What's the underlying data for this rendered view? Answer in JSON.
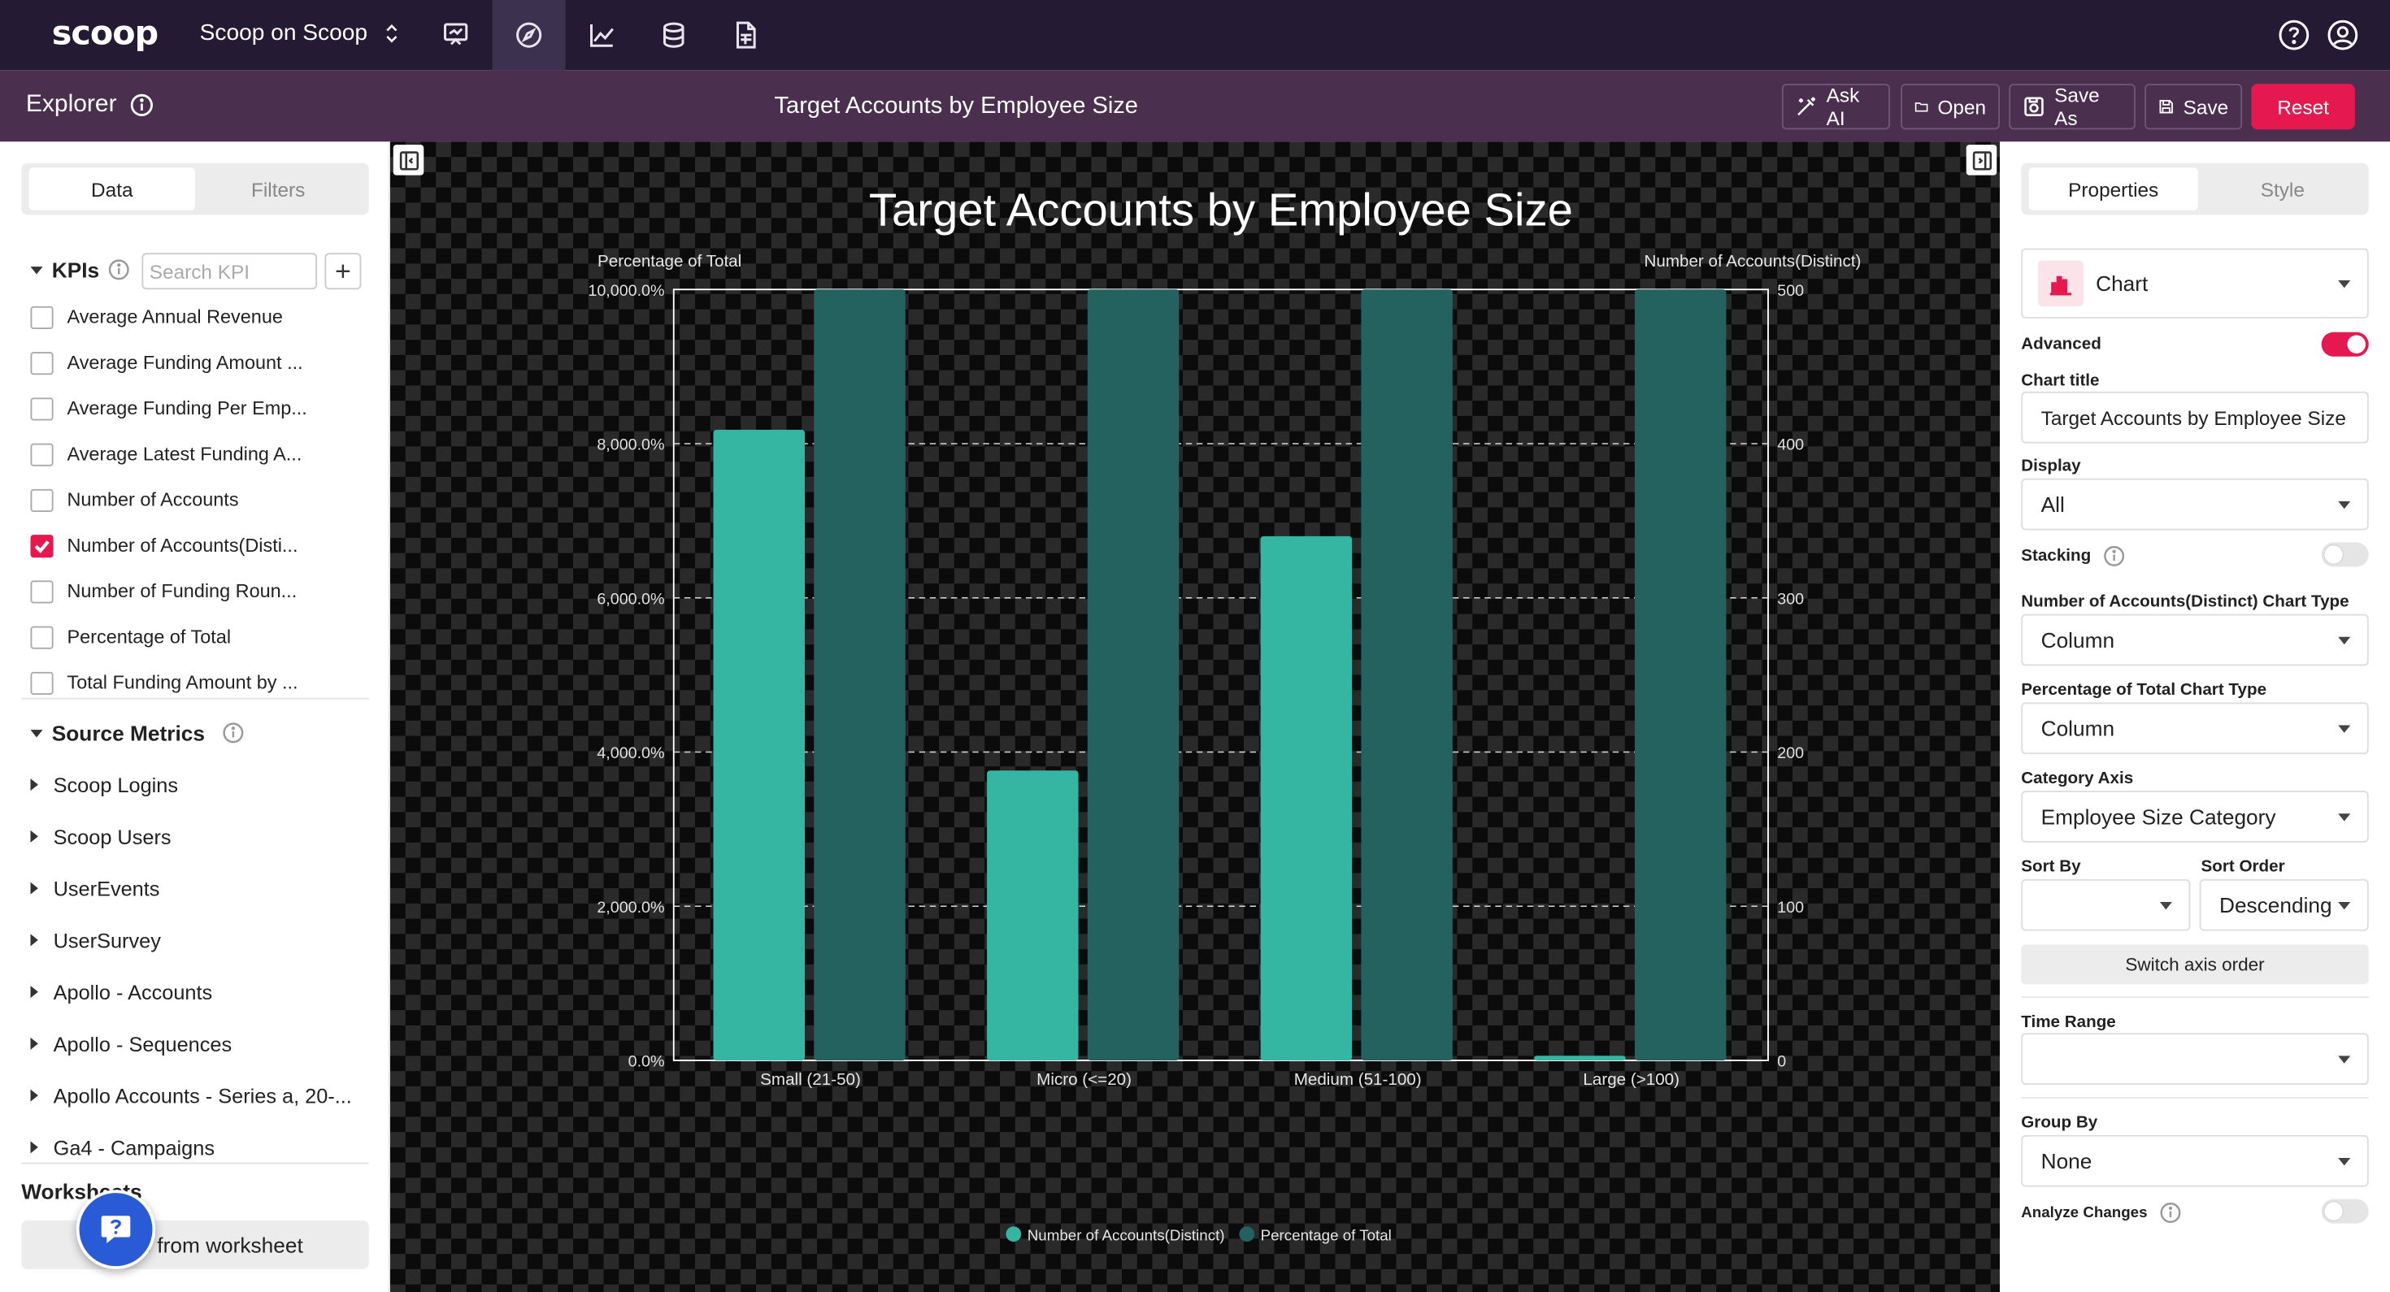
{
  "topbar": {
    "logo_text": "scoop",
    "workspace": "Scoop on Scoop",
    "nav_icons": [
      "presentation-icon",
      "explorer-compass-icon",
      "chart-line-icon",
      "database-icon",
      "report-icon"
    ],
    "help_icon": "help-icon",
    "account_icon": "account-icon"
  },
  "subbar": {
    "section": "Explorer",
    "title": "Target Accounts by Employee Size",
    "buttons": {
      "ask_ai": "Ask AI",
      "open": "Open",
      "save_as": "Save As",
      "save": "Save",
      "reset": "Reset"
    },
    "accent": "#e5194f"
  },
  "left": {
    "tabs": {
      "data": "Data",
      "filters": "Filters"
    },
    "kpis_label": "KPIs",
    "kpi_search_placeholder": "Search KPI",
    "kpis": [
      {
        "label": "Average Annual Revenue",
        "checked": false
      },
      {
        "label": "Average Funding Amount ...",
        "checked": false
      },
      {
        "label": "Average Funding Per Emp...",
        "checked": false
      },
      {
        "label": "Average Latest Funding A...",
        "checked": false
      },
      {
        "label": "Number of Accounts",
        "checked": false
      },
      {
        "label": "Number of Accounts(Disti...",
        "checked": true
      },
      {
        "label": "Number of Funding Roun...",
        "checked": false
      },
      {
        "label": "Percentage of Total",
        "checked": false
      },
      {
        "label": "Total Funding Amount by ...",
        "checked": false
      }
    ],
    "source_metrics_label": "Source Metrics",
    "sources": [
      "Scoop Logins",
      "Scoop Users",
      "UserEvents",
      "UserSurvey",
      "Apollo - Accounts",
      "Apollo - Sequences",
      "Apollo Accounts - Series a, 20-...",
      "Ga4 - Campaigns"
    ],
    "worksheets_label": "Worksheets",
    "add_worksheet": "Create from worksheet"
  },
  "chart_data": {
    "type": "bar",
    "title": "Target Accounts by Employee Size",
    "categories": [
      "Small (21-50)",
      "Micro (<=20)",
      "Medium (51-100)",
      "Large (>100)"
    ],
    "series": [
      {
        "name": "Number of Accounts(Distinct)",
        "axis": "right",
        "color": "#34b6a2",
        "values": [
          409,
          188,
          340,
          3
        ]
      },
      {
        "name": "Percentage of Total",
        "axis": "left",
        "color": "#246260",
        "values": [
          10000,
          10000,
          10000,
          10000
        ]
      }
    ],
    "left_axis": {
      "label": "Percentage of Total",
      "ylim": [
        0,
        10000
      ],
      "ticks": [
        "0.0%",
        "2,000.0%",
        "4,000.0%",
        "6,000.0%",
        "8,000.0%",
        "10,000.0%"
      ]
    },
    "right_axis": {
      "label": "Number of Accounts(Distinct)",
      "ylim": [
        0,
        500
      ],
      "ticks": [
        "0",
        "100",
        "200",
        "300",
        "400",
        "500"
      ]
    },
    "grid": true,
    "legend_position": "bottom"
  },
  "right": {
    "tabs": {
      "properties": "Properties",
      "style": "Style"
    },
    "chart_type": "Chart",
    "advanced_label": "Advanced",
    "advanced_on": true,
    "chart_title_label": "Chart title",
    "chart_title_value": "Target Accounts by Employee Size",
    "display_label": "Display",
    "display_value": "All",
    "stacking_label": "Stacking",
    "stacking_on": false,
    "series1_type_label": "Number of Accounts(Distinct) Chart Type",
    "series1_type_value": "Column",
    "series2_type_label": "Percentage of Total Chart Type",
    "series2_type_value": "Column",
    "category_axis_label": "Category Axis",
    "category_axis_value": "Employee Size Category",
    "sort_by_label": "Sort By",
    "sort_by_value": "",
    "sort_order_label": "Sort Order",
    "sort_order_value": "Descending",
    "switch_axis": "Switch axis order",
    "time_range_label": "Time Range",
    "time_range_value": "",
    "group_by_label": "Group By",
    "group_by_value": "None",
    "analyze_changes_label": "Analyze Changes",
    "analyze_changes_on": false
  }
}
